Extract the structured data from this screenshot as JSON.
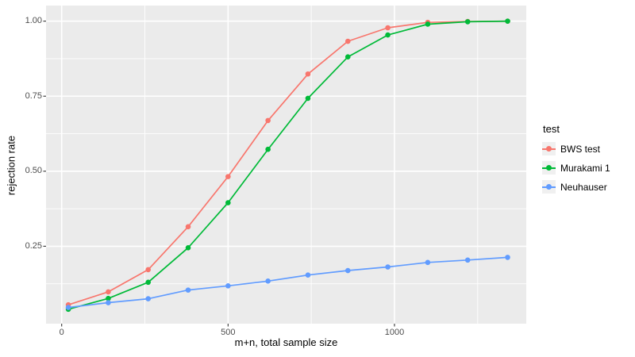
{
  "chart_data": {
    "type": "line",
    "title": "",
    "xlabel": "m+n, total sample size",
    "ylabel": "rejection rate",
    "legend_title": "test",
    "legend_position": "right",
    "grid": true,
    "panel_color": "#EBEBEB",
    "grid_color": "#FFFFFF",
    "tick_text_color": "#4D4D4D",
    "tick_mark_color": "#333333",
    "legend_key_color": "#F0F0F0",
    "xlim": [
      -47,
      1396
    ],
    "ylim": [
      -0.008,
      1.052
    ],
    "x_ticks": [
      0,
      500,
      1000
    ],
    "x_tick_labels": [
      "0",
      "500",
      "1000"
    ],
    "y_ticks": [
      0.25,
      0.5,
      0.75,
      1.0
    ],
    "y_tick_labels": [
      "0.25",
      "0.50",
      "0.75",
      "1.00"
    ],
    "x_minor_ticks": [
      250,
      750,
      1250
    ],
    "y_minor_ticks": [
      0.125,
      0.375,
      0.625,
      0.875
    ],
    "x": [
      20,
      140,
      260,
      380,
      500,
      620,
      740,
      860,
      980,
      1100,
      1220,
      1340
    ],
    "series": [
      {
        "name": "BWS test",
        "color": "#F8766D",
        "values": [
          0.055,
          0.098,
          0.172,
          0.315,
          0.482,
          0.669,
          0.824,
          0.933,
          0.978,
          0.996,
          0.999,
          1.0
        ]
      },
      {
        "name": "Murakami 1",
        "color": "#00BA38",
        "values": [
          0.04,
          0.076,
          0.13,
          0.245,
          0.395,
          0.573,
          0.743,
          0.881,
          0.954,
          0.99,
          0.998,
          1.0
        ]
      },
      {
        "name": "Neuhauser",
        "color": "#619CFF",
        "values": [
          0.046,
          0.062,
          0.075,
          0.104,
          0.118,
          0.134,
          0.154,
          0.169,
          0.181,
          0.196,
          0.204,
          0.213
        ]
      }
    ]
  }
}
